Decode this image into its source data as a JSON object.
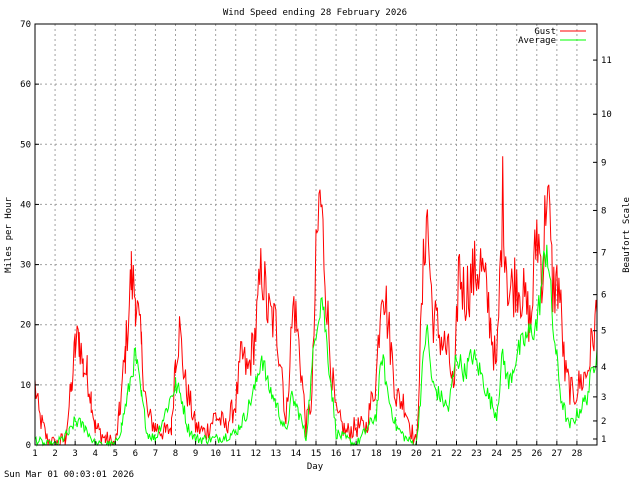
{
  "chart_data": {
    "type": "line",
    "title": "Wind Speed ending 28 February 2026",
    "xlabel": "Day",
    "ylabel": "Miles per Hour",
    "y2label": "Beaufort Scale",
    "xlim": [
      1,
      29
    ],
    "ylim": [
      0,
      70
    ],
    "x_ticks": [
      1,
      2,
      3,
      4,
      5,
      6,
      7,
      8,
      9,
      10,
      11,
      12,
      13,
      14,
      15,
      16,
      17,
      18,
      19,
      20,
      21,
      22,
      23,
      24,
      25,
      26,
      27,
      28
    ],
    "y_ticks": [
      0,
      10,
      20,
      30,
      40,
      50,
      60,
      70
    ],
    "beaufort_ticks": [
      1,
      2,
      3,
      4,
      5,
      6,
      7,
      8,
      9,
      10,
      11
    ],
    "beaufort_mph": [
      1,
      4,
      8,
      13,
      19,
      25,
      32,
      39,
      47,
      55,
      64
    ],
    "grid": true,
    "legend_position": "top-right",
    "series": [
      {
        "name": "Gust",
        "color": "#ff0000",
        "key": [
          [
            1,
            10
          ],
          [
            1.2,
            5
          ],
          [
            1.4,
            3
          ],
          [
            1.6,
            1
          ],
          [
            2,
            0
          ],
          [
            2.5,
            1
          ],
          [
            2.8,
            9
          ],
          [
            3,
            16
          ],
          [
            3.2,
            18
          ],
          [
            3.4,
            13
          ],
          [
            3.6,
            12
          ],
          [
            3.8,
            8
          ],
          [
            4,
            3
          ],
          [
            4.5,
            1
          ],
          [
            5,
            0
          ],
          [
            5.2,
            5
          ],
          [
            5.5,
            15
          ],
          [
            5.8,
            28
          ],
          [
            6,
            25
          ],
          [
            6.3,
            16
          ],
          [
            6.6,
            5
          ],
          [
            7,
            3
          ],
          [
            7.5,
            2
          ],
          [
            7.8,
            3
          ],
          [
            8,
            15
          ],
          [
            8.2,
            19
          ],
          [
            8.5,
            10
          ],
          [
            8.8,
            6
          ],
          [
            9,
            3
          ],
          [
            9.5,
            2
          ],
          [
            10,
            5
          ],
          [
            10.5,
            3
          ],
          [
            11,
            7
          ],
          [
            11.3,
            15
          ],
          [
            11.6,
            12
          ],
          [
            12,
            19
          ],
          [
            12.3,
            30
          ],
          [
            12.6,
            22
          ],
          [
            13,
            20
          ],
          [
            13.3,
            13
          ],
          [
            13.5,
            3
          ],
          [
            13.7,
            15
          ],
          [
            13.9,
            24
          ],
          [
            14.2,
            15
          ],
          [
            14.5,
            3
          ],
          [
            14.8,
            8
          ],
          [
            15,
            30
          ],
          [
            15.2,
            42
          ],
          [
            15.4,
            32
          ],
          [
            15.7,
            15
          ],
          [
            16,
            5
          ],
          [
            16.5,
            2
          ],
          [
            17,
            3
          ],
          [
            17.5,
            3
          ],
          [
            18,
            11
          ],
          [
            18.3,
            29
          ],
          [
            18.6,
            20
          ],
          [
            19,
            8
          ],
          [
            19.4,
            7
          ],
          [
            19.8,
            2
          ],
          [
            20,
            0
          ],
          [
            20.3,
            25
          ],
          [
            20.5,
            40
          ],
          [
            20.8,
            22
          ],
          [
            21.2,
            18
          ],
          [
            21.6,
            15
          ],
          [
            21.9,
            8
          ],
          [
            22.1,
            30
          ],
          [
            22.4,
            25
          ],
          [
            22.8,
            28
          ],
          [
            23.2,
            30
          ],
          [
            23.6,
            23
          ],
          [
            24,
            12
          ],
          [
            24.3,
            41
          ],
          [
            24.6,
            25
          ],
          [
            25,
            28
          ],
          [
            25.3,
            25
          ],
          [
            25.7,
            20
          ],
          [
            26,
            36
          ],
          [
            26.3,
            28
          ],
          [
            26.5,
            45
          ],
          [
            26.8,
            26
          ],
          [
            27.1,
            27
          ],
          [
            27.4,
            12
          ],
          [
            27.8,
            8
          ],
          [
            28.1,
            10
          ],
          [
            28.5,
            12
          ],
          [
            29,
            22
          ]
        ]
      },
      {
        "name": "Average",
        "color": "#00ff00",
        "key": [
          [
            1,
            1
          ],
          [
            1.5,
            0
          ],
          [
            2,
            0
          ],
          [
            2.7,
            2
          ],
          [
            3,
            4
          ],
          [
            3.5,
            3
          ],
          [
            4,
            0
          ],
          [
            5,
            0
          ],
          [
            5.3,
            3
          ],
          [
            5.6,
            8
          ],
          [
            6,
            15
          ],
          [
            6.3,
            8
          ],
          [
            6.6,
            2
          ],
          [
            7,
            1
          ],
          [
            8,
            10
          ],
          [
            8.3,
            8
          ],
          [
            8.6,
            3
          ],
          [
            9,
            1
          ],
          [
            10,
            1
          ],
          [
            11,
            2
          ],
          [
            11.5,
            5
          ],
          [
            12,
            10
          ],
          [
            12.3,
            15
          ],
          [
            12.6,
            10
          ],
          [
            13,
            7
          ],
          [
            13.5,
            2
          ],
          [
            13.8,
            8
          ],
          [
            14.2,
            5
          ],
          [
            14.5,
            1
          ],
          [
            15,
            20
          ],
          [
            15.3,
            25
          ],
          [
            15.6,
            15
          ],
          [
            16,
            2
          ],
          [
            17,
            0
          ],
          [
            18,
            5
          ],
          [
            18.3,
            15
          ],
          [
            18.6,
            8
          ],
          [
            19,
            3
          ],
          [
            19.5,
            1
          ],
          [
            20,
            0
          ],
          [
            20.3,
            12
          ],
          [
            20.5,
            20
          ],
          [
            20.8,
            10
          ],
          [
            21.2,
            8
          ],
          [
            21.6,
            6
          ],
          [
            22,
            15
          ],
          [
            22.4,
            12
          ],
          [
            22.8,
            15
          ],
          [
            23.2,
            12
          ],
          [
            23.6,
            8
          ],
          [
            24,
            5
          ],
          [
            24.3,
            15
          ],
          [
            24.6,
            10
          ],
          [
            25,
            15
          ],
          [
            25.5,
            18
          ],
          [
            26,
            20
          ],
          [
            26.5,
            34
          ],
          [
            26.8,
            20
          ],
          [
            27.2,
            8
          ],
          [
            27.6,
            3
          ],
          [
            28,
            5
          ],
          [
            28.5,
            8
          ],
          [
            29,
            16
          ]
        ]
      }
    ],
    "footer": "Sun Mar 01 00:03:01 2026"
  }
}
